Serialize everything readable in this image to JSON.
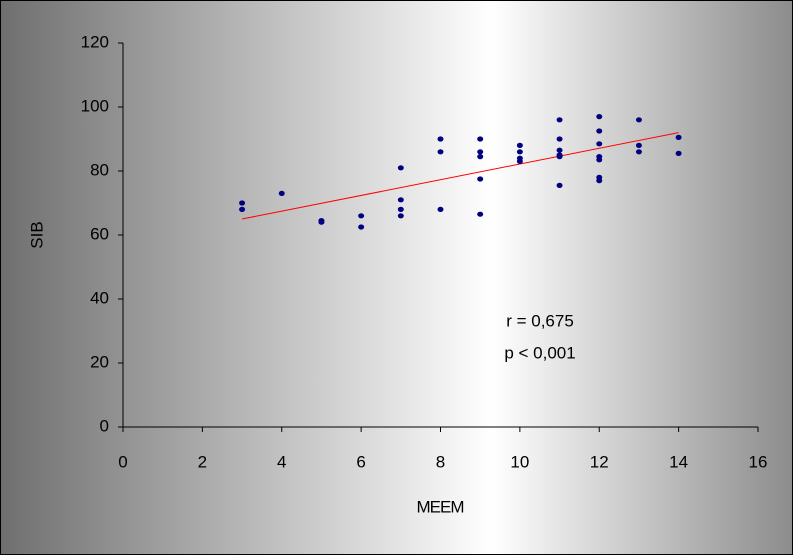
{
  "chart_data": {
    "type": "scatter",
    "x_label": "MEEM",
    "y_label": "SIB",
    "x": [
      3,
      3,
      4,
      5,
      5,
      6,
      6,
      7,
      7,
      7,
      7,
      8,
      8,
      8,
      9,
      9,
      9,
      9,
      9,
      10,
      10,
      10,
      10,
      11,
      11,
      11,
      11,
      11,
      11,
      12,
      12,
      12,
      12,
      12,
      12,
      12,
      13,
      13,
      13,
      14,
      14
    ],
    "values": [
      70,
      68,
      73,
      64.5,
      64,
      66,
      62.5,
      81,
      71,
      68,
      66,
      90,
      86,
      68,
      90,
      86,
      84.5,
      77.5,
      66.5,
      88,
      86,
      84,
      83,
      96,
      90,
      86.5,
      85,
      84.5,
      75.5,
      97,
      92.5,
      88.5,
      84.5,
      83.5,
      78,
      77,
      96,
      88,
      86,
      90.5,
      85.5
    ],
    "color": "#000080",
    "trendline": {
      "x": [
        3,
        14
      ],
      "y": [
        65,
        92
      ],
      "color": "#ff0000"
    },
    "annotations": [
      "r = 0,675",
      "p < 0,001"
    ],
    "xlim": [
      0,
      16
    ],
    "xticks": [
      0,
      2,
      4,
      6,
      8,
      10,
      12,
      14,
      16
    ],
    "ylim": [
      0,
      120
    ],
    "yticks": [
      0,
      20,
      40,
      60,
      80,
      100,
      120
    ],
    "grid": false
  }
}
